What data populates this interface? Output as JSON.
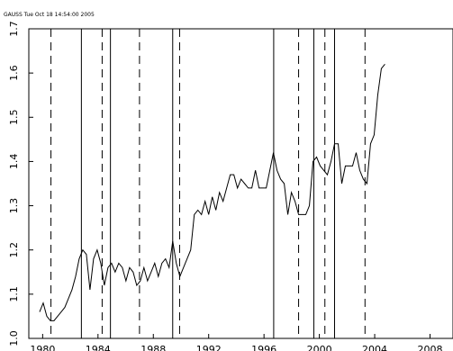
{
  "header": "GAUSS   Tue Oct 18 14:54:00 2005",
  "chart_data": {
    "type": "line",
    "x": [
      1979.78,
      1980.04,
      1980.3,
      1980.56,
      1980.82,
      1981.08,
      1981.34,
      1981.6,
      1981.86,
      1982.12,
      1982.38,
      1982.64,
      1982.9,
      1983.16,
      1983.42,
      1983.68,
      1983.94,
      1984.2,
      1984.46,
      1984.72,
      1984.98,
      1985.24,
      1985.5,
      1985.76,
      1986.02,
      1986.28,
      1986.54,
      1986.8,
      1987.06,
      1987.32,
      1987.58,
      1987.84,
      1988.1,
      1988.36,
      1988.62,
      1988.88,
      1989.14,
      1989.4,
      1989.66,
      1989.92,
      1990.18,
      1990.44,
      1990.7,
      1990.96,
      1991.22,
      1991.48,
      1991.74,
      1992.0,
      1992.26,
      1992.52,
      1992.78,
      1993.04,
      1993.3,
      1993.56,
      1993.82,
      1994.08,
      1994.34,
      1994.6,
      1994.86,
      1995.12,
      1995.38,
      1995.64,
      1995.9,
      1996.16,
      1996.42,
      1996.68,
      1996.94,
      1997.2,
      1997.46,
      1997.72,
      1997.98,
      1998.24,
      1998.5,
      1998.76,
      1999.02,
      1999.28,
      1999.54,
      1999.8,
      2000.06,
      2000.32,
      2000.58,
      2000.84,
      2001.1,
      2001.36,
      2001.62,
      2001.88,
      2002.14,
      2002.4,
      2002.66,
      2002.92,
      2003.18,
      2003.44,
      2003.7,
      2003.96,
      2004.22,
      2004.48,
      2004.74
    ],
    "values": [
      1.06,
      1.08,
      1.05,
      1.04,
      1.04,
      1.05,
      1.06,
      1.07,
      1.09,
      1.11,
      1.14,
      1.18,
      1.2,
      1.19,
      1.11,
      1.18,
      1.2,
      1.17,
      1.12,
      1.16,
      1.17,
      1.15,
      1.17,
      1.16,
      1.13,
      1.16,
      1.15,
      1.12,
      1.13,
      1.16,
      1.13,
      1.15,
      1.17,
      1.14,
      1.17,
      1.18,
      1.16,
      1.22,
      1.17,
      1.14,
      1.16,
      1.18,
      1.2,
      1.28,
      1.29,
      1.28,
      1.31,
      1.28,
      1.32,
      1.29,
      1.33,
      1.31,
      1.34,
      1.37,
      1.37,
      1.34,
      1.36,
      1.35,
      1.34,
      1.34,
      1.38,
      1.34,
      1.34,
      1.34,
      1.38,
      1.42,
      1.38,
      1.36,
      1.35,
      1.28,
      1.33,
      1.31,
      1.28,
      1.28,
      1.28,
      1.3,
      1.4,
      1.41,
      1.39,
      1.38,
      1.37,
      1.4,
      1.44,
      1.44,
      1.35,
      1.39,
      1.39,
      1.39,
      1.42,
      1.38,
      1.36,
      1.35,
      1.44,
      1.46,
      1.55,
      1.61,
      1.62
    ],
    "color": "#000000",
    "vlines_solid": [
      1982.8,
      1984.9,
      1989.4,
      1996.7,
      1999.6,
      2001.1
    ],
    "vlines_dashed": [
      1980.6,
      1984.3,
      1987.0,
      1989.9,
      1998.5,
      2000.4,
      2003.3
    ],
    "xlim": [
      1979,
      2009.66
    ],
    "xticks": [
      1980,
      1984,
      1988,
      1992,
      1996,
      2000,
      2004,
      2008
    ],
    "ylim": [
      1,
      1.7
    ],
    "yticks": [
      {
        "value": 1,
        "label": "1.0"
      },
      1.1,
      1.2,
      1.3,
      1.4,
      1.5,
      1.6,
      1.7
    ]
  }
}
